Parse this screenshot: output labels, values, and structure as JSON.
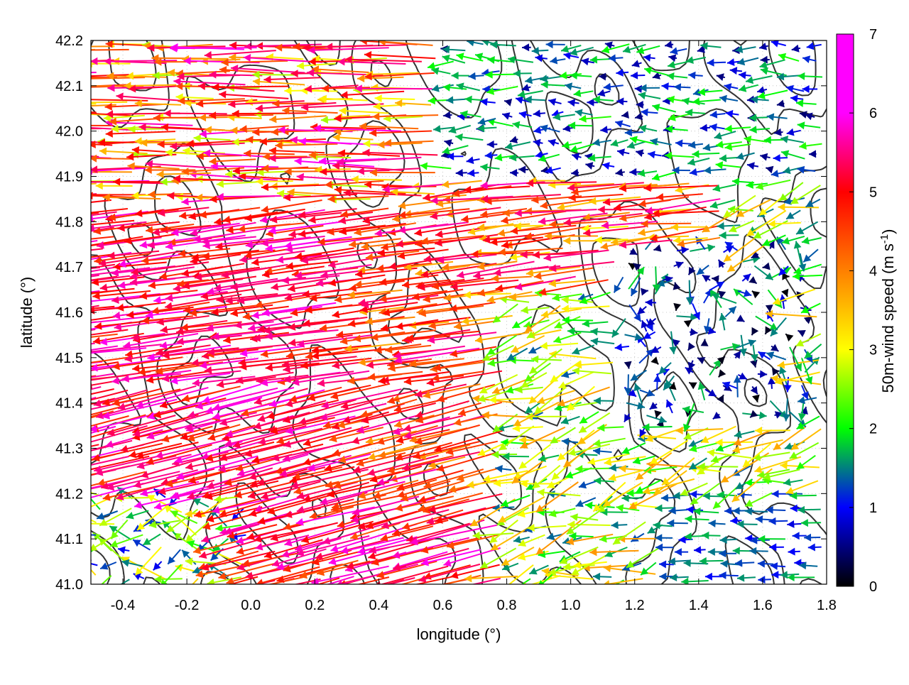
{
  "chart_data": {
    "type": "vector-field",
    "xlabel": "longitude (°)",
    "ylabel": "latitude (°)",
    "xlim": [
      -0.5,
      1.8
    ],
    "ylim": [
      41.0,
      42.2
    ],
    "xticks": [
      -0.4,
      -0.2,
      0.0,
      0.2,
      0.4,
      0.6,
      0.8,
      1.0,
      1.2,
      1.4,
      1.6,
      1.8
    ],
    "xtick_labels": [
      "-0.4",
      "-0.2",
      "0.0",
      "0.2",
      "0.4",
      "0.6",
      "0.8",
      "1.0",
      "1.2",
      "1.4",
      "1.6",
      "1.8"
    ],
    "yticks": [
      41.0,
      41.1,
      41.2,
      41.3,
      41.4,
      41.5,
      41.6,
      41.7,
      41.8,
      41.9,
      42.0,
      42.1,
      42.2
    ],
    "ytick_labels": [
      "41.0",
      "41.1",
      "41.2",
      "41.3",
      "41.4",
      "41.5",
      "41.6",
      "41.7",
      "41.8",
      "41.9",
      "42.0",
      "42.1",
      "42.2"
    ],
    "grid": true,
    "colorbar": {
      "label_main": "50m-wind speed (m s",
      "label_exp": "-1",
      "label_close": ")",
      "range": [
        0,
        7
      ],
      "ticks": [
        0,
        1,
        2,
        3,
        4,
        5,
        6,
        7
      ],
      "tick_labels": [
        "0",
        "1",
        "2",
        "3",
        "4",
        "5",
        "6",
        "7"
      ],
      "colors": [
        "#000000",
        "#0000ff",
        "#00ff00",
        "#ffff00",
        "#ff8000",
        "#ff0000",
        "#ff00ff"
      ]
    },
    "contour_color": "#333333",
    "wind_regions": [
      {
        "region": "west, north of 41.8",
        "lon": [
          -0.5,
          0.6
        ],
        "lat": [
          41.8,
          42.2
        ],
        "speed_ms": [
          3,
          7
        ],
        "direction": "toward west"
      },
      {
        "region": "west, 41.2 to 41.8",
        "lon": [
          -0.5,
          0.8
        ],
        "lat": [
          41.2,
          41.8
        ],
        "speed_ms": [
          5,
          7
        ],
        "direction": "toward west"
      },
      {
        "region": "south-west corner",
        "lon": [
          -0.5,
          0.0
        ],
        "lat": [
          41.0,
          41.2
        ],
        "speed_ms": [
          1,
          4
        ],
        "direction": "variable"
      },
      {
        "region": "centre-east calm zone",
        "lon": [
          1.2,
          1.7
        ],
        "lat": [
          41.4,
          41.7
        ],
        "speed_ms": [
          0,
          2
        ],
        "direction": "variable"
      },
      {
        "region": "south-east coast",
        "lon": [
          1.3,
          1.8
        ],
        "lat": [
          41.0,
          41.2
        ],
        "speed_ms": [
          1,
          2
        ],
        "direction": "toward west"
      },
      {
        "region": "north-east",
        "lon": [
          0.6,
          1.8
        ],
        "lat": [
          41.9,
          42.2
        ],
        "speed_ms": [
          0.5,
          2.5
        ],
        "direction": "toward west"
      }
    ]
  }
}
